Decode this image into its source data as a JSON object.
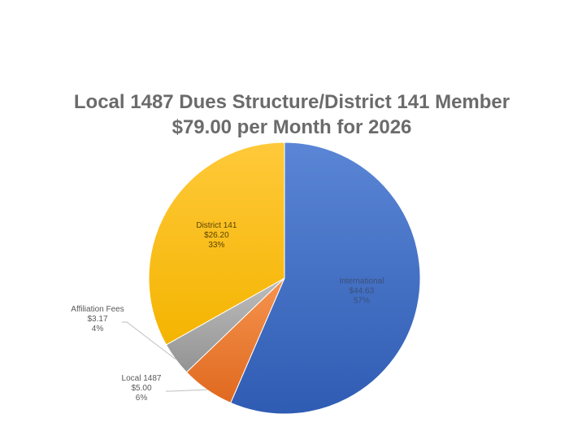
{
  "chart_data": {
    "type": "pie",
    "title": [
      "Local 1487 Dues Structure/District 141 Member",
      "$79.00 per Month for 2026"
    ],
    "categories": [
      "International",
      "Local 1487",
      "Affiliation Fees",
      "District 141"
    ],
    "values": [
      44.63,
      5.0,
      3.17,
      26.2
    ],
    "value_labels": [
      "$44.63",
      "$5.00",
      "$3.17",
      "$26.20"
    ],
    "percent_labels": [
      "57%",
      "6%",
      "4%",
      "33%"
    ],
    "colors": [
      "#4472c4",
      "#ed7d31",
      "#a5a5a5",
      "#ffc000"
    ],
    "label_positions": [
      "inside",
      "outside-left",
      "outside-left",
      "inside"
    ],
    "legend": "none"
  }
}
